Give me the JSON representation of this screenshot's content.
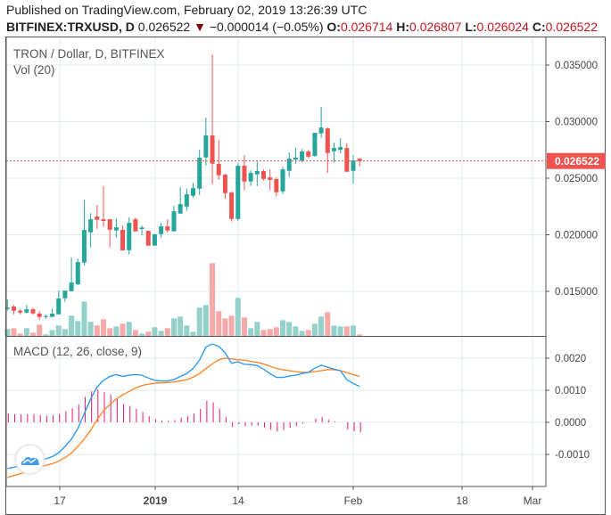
{
  "header": {
    "published": "Published on TradingView.com, February 02, 2019 13:26:39 UTC",
    "symbol": "BITFINEX:TRXUSD, D",
    "last": "0.026522",
    "change": "−0.000014 (−0.05%)",
    "o_label": "O:",
    "o": "0.026714",
    "h_label": "H:",
    "h": "0.026807",
    "l_label": "L:",
    "l": "0.026024",
    "c_label": "C:",
    "c": "0.026522"
  },
  "pane_title": "TRON / Dollar, D, BITFINEX",
  "vol_title": "Vol (20)",
  "macd_title": "MACD (12, 26, close, 9)",
  "colors": {
    "up": "#26a69a",
    "down": "#ef5350",
    "vol_up": "#94d1cb",
    "vol_down": "#f6a9a8",
    "macd": "#2196f3",
    "signal": "#ff7f1e",
    "hist": "#f0146e",
    "grid": "#e1ecf2"
  },
  "chart_data": [
    {
      "type": "candlestick",
      "price_ticks": [
        "0.035000",
        "0.030000",
        "0.025000",
        "0.020000",
        "0.015000"
      ],
      "price_tick_values": [
        0.035,
        0.03,
        0.025,
        0.02,
        0.015
      ],
      "last_price_label": "0.026522",
      "last_price": 0.026522,
      "x_ticks": [
        "17",
        "2019",
        "14",
        "Feb",
        "18",
        "Mar"
      ],
      "ohlc_thousandths": [
        [
          13.45,
          14.29,
          13.31,
          13.58
        ],
        [
          13.66,
          13.79,
          12.97,
          13.29
        ],
        [
          13.29,
          13.45,
          12.97,
          13.13
        ],
        [
          13.13,
          13.79,
          13.05,
          13.42
        ],
        [
          13.42,
          13.55,
          12.95,
          13.05
        ],
        [
          13.03,
          13.26,
          12.5,
          12.74
        ],
        [
          12.74,
          12.97,
          12.58,
          12.82
        ],
        [
          12.74,
          13.5,
          12.74,
          13.03
        ],
        [
          12.97,
          15.07,
          12.97,
          14.37
        ],
        [
          14.39,
          15.07,
          14.07,
          15.07
        ],
        [
          15.02,
          17.99,
          15.02,
          15.78
        ],
        [
          15.62,
          17.91,
          15.55,
          17.59
        ],
        [
          17.54,
          23.1,
          17.3,
          20.43
        ],
        [
          20.22,
          21.92,
          18.88,
          21.37
        ],
        [
          21.61,
          22.63,
          20.53,
          21.32
        ],
        [
          21.37,
          24.31,
          20.69,
          21.22
        ],
        [
          21.37,
          21.37,
          18.88,
          20.45
        ],
        [
          20.38,
          21.45,
          19.74,
          20.66
        ],
        [
          20.43,
          20.82,
          18.62,
          18.62
        ],
        [
          18.64,
          21.53,
          18.25,
          21.06
        ],
        [
          21.37,
          21.53,
          20.3,
          20.3
        ],
        [
          20.51,
          20.82,
          19.98,
          20.64
        ],
        [
          20.35,
          20.35,
          19.04,
          19.04
        ],
        [
          19.04,
          20.09,
          19.04,
          20.04
        ],
        [
          20.06,
          21.06,
          19.74,
          20.74
        ],
        [
          20.74,
          21.37,
          20.22,
          20.38
        ],
        [
          20.3,
          22.55,
          20.3,
          22.08
        ],
        [
          21.87,
          24.21,
          21.87,
          22.71
        ],
        [
          22.5,
          24.05,
          22.11,
          23.58
        ],
        [
          23.45,
          24.6,
          23.29,
          24.13
        ],
        [
          24.08,
          27.51,
          23.52,
          26.81
        ],
        [
          26.83,
          30.35,
          26.12,
          28.78
        ],
        [
          28.78,
          35.94,
          24.47,
          26.28
        ],
        [
          26.26,
          28.38,
          24.86,
          25.26
        ],
        [
          25.31,
          25.39,
          23.21,
          23.68
        ],
        [
          23.73,
          23.81,
          21.16,
          21.4
        ],
        [
          21.4,
          26.33,
          21.24,
          26.1
        ],
        [
          26.1,
          27.04,
          23.92,
          24.71
        ],
        [
          24.71,
          25.7,
          24.31,
          25.47
        ],
        [
          25.34,
          26.49,
          24.31,
          25.63
        ],
        [
          25.63,
          25.78,
          24.79,
          24.94
        ],
        [
          25.07,
          25.78,
          23.92,
          24.86
        ],
        [
          24.92,
          25.07,
          23.37,
          23.76
        ],
        [
          23.84,
          26.02,
          23.6,
          25.78
        ],
        [
          25.65,
          27.28,
          25.1,
          26.73
        ],
        [
          26.65,
          27.67,
          26.26,
          26.81
        ],
        [
          26.57,
          27.59,
          26.41,
          27.36
        ],
        [
          27.36,
          27.51,
          26.75,
          26.91
        ],
        [
          26.96,
          29.01,
          26.88,
          29.01
        ],
        [
          28.96,
          31.29,
          28.54,
          29.48
        ],
        [
          29.4,
          29.48,
          25.47,
          27.23
        ],
        [
          27.38,
          28.14,
          26.36,
          27.67
        ],
        [
          27.51,
          28.54,
          27.2,
          27.75
        ],
        [
          27.67,
          28.07,
          25.57,
          25.57
        ],
        [
          25.65,
          27.04,
          24.52,
          26.57
        ],
        [
          26.714,
          26.807,
          26.024,
          26.522
        ]
      ],
      "volume_relative": [
        23,
        26,
        8,
        26,
        11,
        38,
        5,
        20,
        35,
        23,
        68,
        50,
        116,
        47,
        35,
        56,
        26,
        32,
        41,
        47,
        20,
        8,
        14,
        29,
        17,
        26,
        59,
        65,
        35,
        14,
        95,
        104,
        245,
        83,
        59,
        68,
        128,
        62,
        26,
        47,
        20,
        23,
        29,
        53,
        47,
        32,
        17,
        20,
        41,
        65,
        80,
        35,
        32,
        32,
        35,
        5
      ]
    },
    {
      "type": "line",
      "title": "MACD (12, 26, close, 9)",
      "y_ticks": [
        "0.0020",
        "0.0010",
        "0.0000",
        "-0.0010"
      ],
      "y_tick_values": [
        0.002,
        0.001,
        0,
        -0.001
      ],
      "unit_scale": "thousandths",
      "macd": [
        -1.44,
        -1.4,
        -1.35,
        -1.29,
        -1.21,
        -1.17,
        -1.14,
        -1.07,
        -0.95,
        -0.75,
        -0.52,
        -0.19,
        0.27,
        0.73,
        1.1,
        1.31,
        1.43,
        1.49,
        1.43,
        1.47,
        1.49,
        1.47,
        1.38,
        1.31,
        1.29,
        1.29,
        1.33,
        1.43,
        1.52,
        1.68,
        1.94,
        2.35,
        2.44,
        2.37,
        2.17,
        1.84,
        1.89,
        1.81,
        1.8,
        1.77,
        1.66,
        1.52,
        1.4,
        1.4,
        1.44,
        1.47,
        1.52,
        1.56,
        1.69,
        1.78,
        1.72,
        1.66,
        1.61,
        1.33,
        1.21,
        1.12
      ],
      "signal": [
        -1.72,
        -1.66,
        -1.6,
        -1.54,
        -1.47,
        -1.4,
        -1.34,
        -1.29,
        -1.21,
        -1.1,
        -0.96,
        -0.75,
        -0.52,
        -0.24,
        0.08,
        0.36,
        0.56,
        0.73,
        0.86,
        0.96,
        1.07,
        1.15,
        1.19,
        1.22,
        1.23,
        1.24,
        1.26,
        1.29,
        1.33,
        1.41,
        1.52,
        1.68,
        1.82,
        1.95,
        2.0,
        1.98,
        1.95,
        1.94,
        1.9,
        1.87,
        1.82,
        1.75,
        1.68,
        1.64,
        1.61,
        1.58,
        1.56,
        1.56,
        1.58,
        1.61,
        1.64,
        1.64,
        1.61,
        1.55,
        1.49,
        1.43
      ],
      "histogram": [
        0.28,
        0.26,
        0.25,
        0.25,
        0.26,
        0.23,
        0.2,
        0.22,
        0.26,
        0.35,
        0.44,
        0.56,
        0.79,
        0.97,
        1.02,
        0.95,
        0.87,
        0.76,
        0.57,
        0.51,
        0.42,
        0.32,
        0.19,
        0.09,
        0.06,
        0.05,
        0.07,
        0.14,
        0.19,
        0.27,
        0.42,
        0.67,
        0.62,
        0.42,
        0.17,
        -0.14,
        -0.06,
        -0.13,
        -0.1,
        -0.1,
        -0.16,
        -0.23,
        -0.28,
        -0.24,
        -0.17,
        -0.11,
        -0.04,
        0.0,
        0.11,
        0.17,
        0.08,
        0.02,
        0.0,
        -0.22,
        -0.28,
        -0.31
      ]
    }
  ]
}
